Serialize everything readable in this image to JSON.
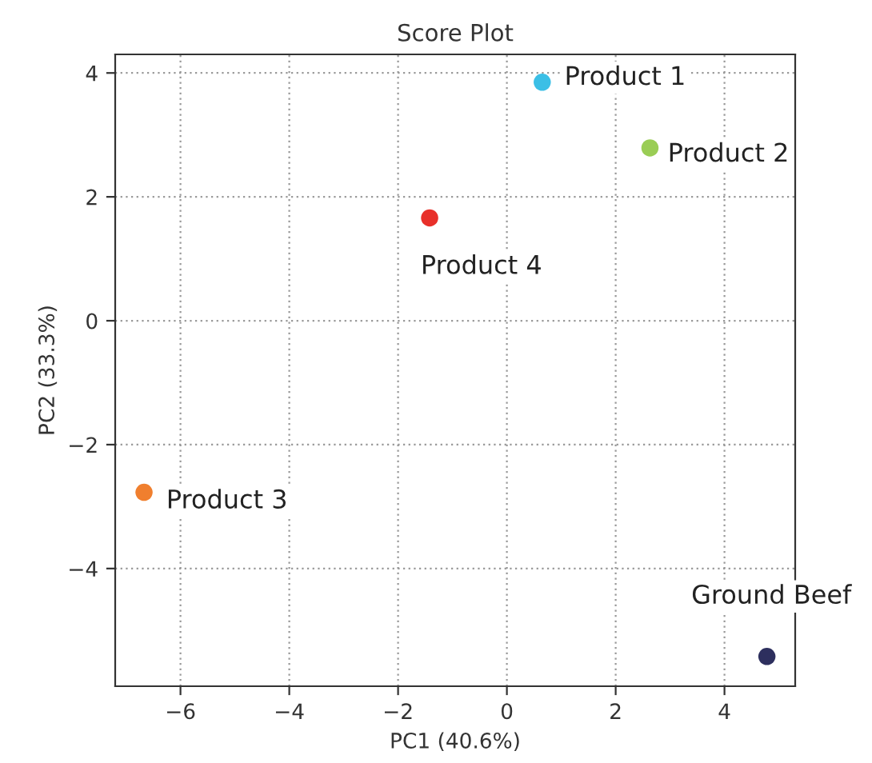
{
  "chart_data": {
    "type": "scatter",
    "title": "Score Plot",
    "xlabel": "PC1 (40.6%)",
    "ylabel": "PC2 (33.3%)",
    "xlim": [
      -7.2,
      5.3
    ],
    "ylim": [
      -5.9,
      4.3
    ],
    "xticks": [
      -6,
      -4,
      -2,
      0,
      2,
      4
    ],
    "yticks": [
      -4,
      -2,
      0,
      2,
      4
    ],
    "grid": true,
    "marker": "circle",
    "series": [
      {
        "name": "Product 1",
        "color": "#3bbfe6",
        "x": [
          0.65
        ],
        "values": [
          3.85
        ]
      },
      {
        "name": "Product 2",
        "color": "#9acd55",
        "x": [
          2.63
        ],
        "values": [
          2.79
        ]
      },
      {
        "name": "Product 3",
        "color": "#f07f2e",
        "x": [
          -6.67
        ],
        "values": [
          -2.77
        ]
      },
      {
        "name": "Product 4",
        "color": "#e8302a",
        "x": [
          -1.42
        ],
        "values": [
          1.66
        ]
      },
      {
        "name": "Ground Beef",
        "color": "#2d2f5e",
        "x": [
          4.78
        ],
        "values": [
          -5.42
        ]
      }
    ]
  }
}
